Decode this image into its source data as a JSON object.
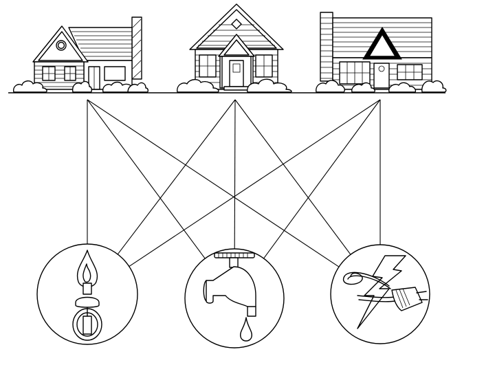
{
  "diagram": {
    "houses": [
      {
        "id": "house-1",
        "icon": "house-icon"
      },
      {
        "id": "house-2",
        "icon": "house-icon"
      },
      {
        "id": "house-3",
        "icon": "house-icon"
      }
    ],
    "utilities": [
      {
        "id": "gas",
        "icon": "gas-flame-icon"
      },
      {
        "id": "water",
        "icon": "water-faucet-icon"
      },
      {
        "id": "electricity",
        "icon": "electric-plug-icon"
      }
    ],
    "connections": [
      [
        "house-1",
        "gas"
      ],
      [
        "house-1",
        "water"
      ],
      [
        "house-1",
        "electricity"
      ],
      [
        "house-2",
        "gas"
      ],
      [
        "house-2",
        "water"
      ],
      [
        "house-2",
        "electricity"
      ],
      [
        "house-3",
        "gas"
      ],
      [
        "house-3",
        "water"
      ],
      [
        "house-3",
        "electricity"
      ]
    ],
    "line_color": "#000000",
    "background": "#ffffff"
  }
}
